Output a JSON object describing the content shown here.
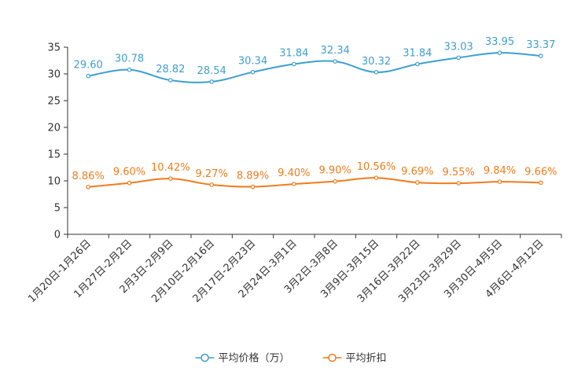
{
  "chart_data": {
    "type": "line",
    "categories": [
      "1月20日-1月26日",
      "1月27日-2月2日",
      "2月3日-2月9日",
      "2月10日-2月16日",
      "2月17日-2月23日",
      "2月24日-3月1日",
      "3月2日-3月8日",
      "3月9日-3月15日",
      "3月16日-3月22日",
      "3月23日-3月29日",
      "3月30日-4月5日",
      "4月6日-4月12日"
    ],
    "ylim": [
      0,
      35
    ],
    "yticks": [
      0,
      5,
      10,
      15,
      20,
      25,
      30,
      35
    ],
    "series": [
      {
        "name": "平均价格（万）",
        "color": "#3e9fd0",
        "values": [
          29.6,
          30.78,
          28.82,
          28.54,
          30.34,
          31.84,
          32.34,
          30.32,
          31.84,
          33.03,
          33.95,
          33.37
        ],
        "labels": [
          "29.60",
          "30.78",
          "28.82",
          "28.54",
          "30.34",
          "31.84",
          "32.34",
          "30.32",
          "31.84",
          "33.03",
          "33.95",
          "33.37"
        ]
      },
      {
        "name": "平均折扣",
        "color": "#f07c1e",
        "values": [
          8.86,
          9.6,
          10.42,
          9.27,
          8.89,
          9.4,
          9.9,
          10.56,
          9.69,
          9.55,
          9.84,
          9.66
        ],
        "labels": [
          "8.86%",
          "9.60%",
          "10.42%",
          "9.27%",
          "8.89%",
          "9.40%",
          "9.90%",
          "10.56%",
          "9.69%",
          "9.55%",
          "9.84%",
          "9.66%"
        ]
      }
    ],
    "legend": "bottom-center"
  }
}
